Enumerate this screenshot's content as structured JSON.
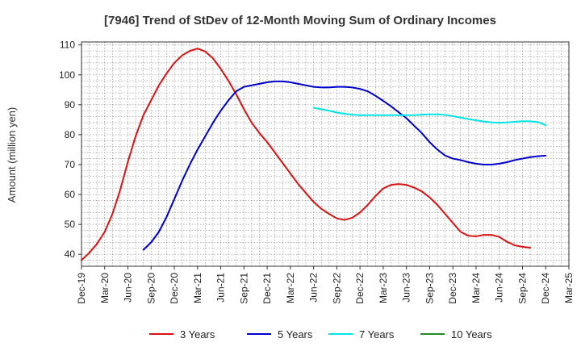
{
  "chart_data": {
    "type": "line",
    "title": "[7946]  Trend of StDev of 12-Month Moving Sum of Ordinary Incomes",
    "xlabel": "",
    "ylabel": "Amount (million yen)",
    "ylim": [
      36,
      111
    ],
    "yticks": [
      40,
      50,
      60,
      70,
      80,
      90,
      100,
      110
    ],
    "x_ticks": [
      "Dec-19",
      "Mar-20",
      "Jun-20",
      "Sep-20",
      "Dec-20",
      "Mar-21",
      "Jun-21",
      "Sep-21",
      "Dec-21",
      "Mar-22",
      "Jun-22",
      "Sep-22",
      "Dec-22",
      "Mar-23",
      "Jun-23",
      "Sep-23",
      "Dec-23",
      "Mar-24",
      "Jun-24",
      "Sep-24",
      "Dec-24",
      "Mar-25"
    ],
    "grid": true,
    "legend_position": "bottom",
    "x_months": [
      "Dec-19",
      "Jan-20",
      "Feb-20",
      "Mar-20",
      "Apr-20",
      "May-20",
      "Jun-20",
      "Jul-20",
      "Aug-20",
      "Sep-20",
      "Oct-20",
      "Nov-20",
      "Dec-20",
      "Jan-21",
      "Feb-21",
      "Mar-21",
      "Apr-21",
      "May-21",
      "Jun-21",
      "Jul-21",
      "Aug-21",
      "Sep-21",
      "Oct-21",
      "Nov-21",
      "Dec-21",
      "Jan-22",
      "Feb-22",
      "Mar-22",
      "Apr-22",
      "May-22",
      "Jun-22",
      "Jul-22",
      "Aug-22",
      "Sep-22",
      "Oct-22",
      "Nov-22",
      "Dec-22",
      "Jan-23",
      "Feb-23",
      "Mar-23",
      "Apr-23",
      "May-23",
      "Jun-23",
      "Jul-23",
      "Aug-23",
      "Sep-23",
      "Oct-23",
      "Nov-23",
      "Dec-23",
      "Jan-24",
      "Feb-24",
      "Mar-24",
      "Apr-24",
      "May-24",
      "Jun-24",
      "Jul-24",
      "Aug-24",
      "Sep-24",
      "Oct-24",
      "Nov-24",
      "Dec-24"
    ],
    "series": [
      {
        "name": "3 Years",
        "color": "#dd1111",
        "values": [
          38.0,
          40.5,
          43.5,
          47.5,
          53.5,
          61.5,
          71.0,
          79.5,
          86.5,
          91.5,
          96.5,
          100.5,
          104.0,
          106.5,
          108.0,
          108.8,
          107.8,
          105.5,
          102.0,
          98.0,
          93.5,
          88.5,
          84.0,
          80.5,
          77.5,
          74.0,
          70.5,
          67.0,
          63.5,
          60.5,
          57.5,
          55.2,
          53.5,
          52.0,
          51.5,
          52.2,
          54.0,
          56.5,
          59.5,
          62.0,
          63.2,
          63.5,
          63.2,
          62.3,
          61.0,
          59.0,
          56.5,
          53.5,
          50.5,
          47.5,
          46.2,
          46.0,
          46.5,
          46.5,
          45.8,
          44.2,
          43.0,
          42.5,
          42.2,
          null,
          null
        ],
        "offset": 0
      },
      {
        "name": "5 Years",
        "color": "#0000cc",
        "values": [
          41.5,
          44.0,
          47.5,
          52.5,
          58.5,
          64.5,
          70.0,
          75.0,
          79.5,
          84.0,
          88.0,
          91.5,
          94.5,
          96.0,
          96.5,
          97.0,
          97.5,
          97.8,
          97.8,
          97.5,
          97.0,
          96.5,
          96.0,
          95.8,
          95.8,
          96.0,
          96.0,
          95.8,
          95.3,
          94.5,
          93.0,
          91.3,
          89.5,
          87.5,
          85.5,
          83.0,
          80.5,
          77.5,
          75.0,
          73.0,
          72.0,
          71.5,
          70.8,
          70.3,
          70.0,
          70.0,
          70.3,
          70.8,
          71.5,
          72.0,
          72.5,
          72.8,
          73.0
        ],
        "offset": 8
      },
      {
        "name": "7 Years",
        "color": "#00e5e5",
        "values": [
          89.0,
          88.5,
          88.0,
          87.4,
          87.0,
          86.7,
          86.5,
          86.5,
          86.5,
          86.5,
          86.5,
          86.5,
          86.5,
          86.5,
          86.7,
          86.8,
          86.8,
          86.6,
          86.2,
          85.7,
          85.2,
          84.8,
          84.4,
          84.1,
          84.0,
          84.1,
          84.3,
          84.5,
          84.5,
          84.2,
          83.2
        ],
        "offset": 30
      },
      {
        "name": "10 Years",
        "color": "#228b22",
        "values": [],
        "offset": 0
      }
    ]
  }
}
